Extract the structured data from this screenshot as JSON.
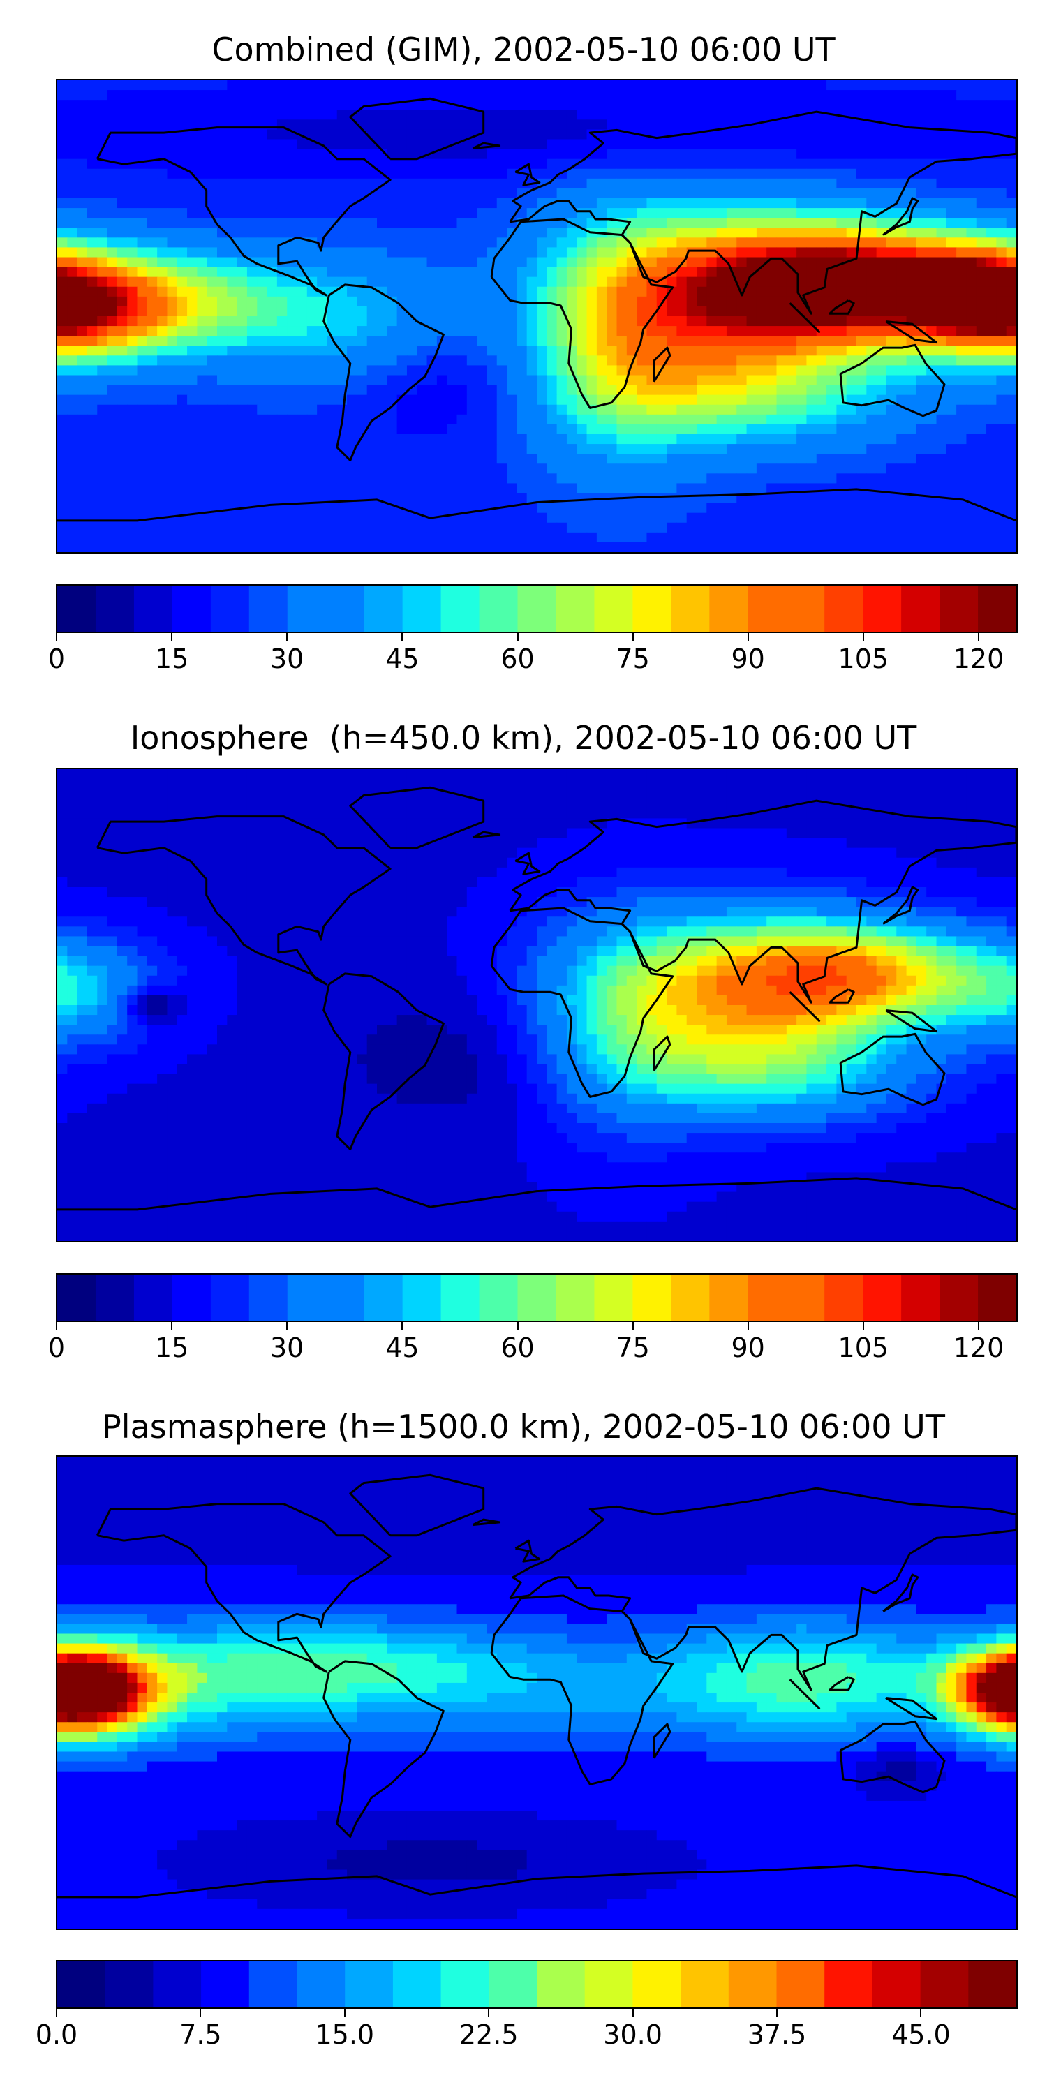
{
  "colormap": [
    "#00007f",
    "#00009f",
    "#0000cf",
    "#0000ff",
    "#0020ff",
    "#0050ff",
    "#0080ff",
    "#00a8ff",
    "#00d4ff",
    "#1fffe0",
    "#4dffaa",
    "#7dff7a",
    "#aaff4d",
    "#d4ff23",
    "#fff200",
    "#ffc400",
    "#ff9800",
    "#ff6c00",
    "#ff4000",
    "#ff1400",
    "#d40000",
    "#a30000",
    "#7f0000"
  ],
  "coastline_color": "#000000",
  "chart_data": [
    {
      "type": "heatmap",
      "title": "Combined (GIM), 2002-05-10 06:00 UT",
      "colorbar": {
        "min": 0,
        "max": 125,
        "step": 5,
        "ticks": [
          "0",
          "15",
          "30",
          "45",
          "60",
          "75",
          "90",
          "105",
          "120"
        ],
        "tick_values": [
          0,
          15,
          30,
          45,
          60,
          75,
          90,
          105,
          120
        ]
      },
      "background_value": 22,
      "features": [
        {
          "lon": 120,
          "lat": 12,
          "value": 100,
          "sigma_lon": 40,
          "sigma_lat": 15
        },
        {
          "lon": 160,
          "lat": 10,
          "value": 30,
          "sigma_lon": 15,
          "sigma_lat": 10
        },
        {
          "lon": 70,
          "lat": 5,
          "value": 55,
          "sigma_lon": 40,
          "sigma_lat": 25
        },
        {
          "lon": 30,
          "lat": -10,
          "value": 30,
          "sigma_lon": 25,
          "sigma_lat": 35
        },
        {
          "lon": 80,
          "lat": -30,
          "value": 25,
          "sigma_lon": 45,
          "sigma_lat": 15
        },
        {
          "lon": -180,
          "lat": 3,
          "value": 70,
          "sigma_lon": 25,
          "sigma_lat": 14
        },
        {
          "lon": -140,
          "lat": 5,
          "value": 45,
          "sigma_lon": 35,
          "sigma_lat": 14
        },
        {
          "lon": -70,
          "lat": -5,
          "value": 22,
          "sigma_lon": 30,
          "sigma_lat": 20
        },
        {
          "lon": -40,
          "lat": -25,
          "value": -12,
          "sigma_lon": 30,
          "sigma_lat": 15
        },
        {
          "lon": 0,
          "lat": 70,
          "value": -10,
          "sigma_lon": 120,
          "sigma_lat": 12
        }
      ]
    },
    {
      "type": "heatmap",
      "title": "Ionosphere  (h=450.0 km), 2002-05-10 06:00 UT",
      "colorbar": {
        "min": 0,
        "max": 125,
        "step": 5,
        "ticks": [
          "0",
          "15",
          "30",
          "45",
          "60",
          "75",
          "90",
          "105",
          "120"
        ],
        "tick_values": [
          0,
          15,
          30,
          45,
          60,
          75,
          90,
          105,
          120
        ]
      },
      "background_value": 14,
      "features": [
        {
          "lon": 120,
          "lat": 12,
          "value": 60,
          "sigma_lon": 35,
          "sigma_lat": 14
        },
        {
          "lon": 70,
          "lat": 5,
          "value": 50,
          "sigma_lon": 40,
          "sigma_lat": 22
        },
        {
          "lon": 90,
          "lat": -25,
          "value": 30,
          "sigma_lon": 40,
          "sigma_lat": 15
        },
        {
          "lon": 30,
          "lat": -10,
          "value": 20,
          "sigma_lon": 25,
          "sigma_lat": 30
        },
        {
          "lon": -175,
          "lat": 5,
          "value": 28,
          "sigma_lon": 25,
          "sigma_lat": 14
        },
        {
          "lon": -145,
          "lat": 0,
          "value": -20,
          "sigma_lon": 8,
          "sigma_lat": 5
        },
        {
          "lon": -20,
          "lat": -20,
          "value": -8,
          "sigma_lon": 40,
          "sigma_lat": 20
        }
      ]
    },
    {
      "type": "heatmap",
      "title": "Plasmasphere (h=1500.0 km), 2002-05-10 06:00 UT",
      "colorbar": {
        "min": 0,
        "max": 50,
        "step": 2.5,
        "ticks": [
          "0.0",
          "7.5",
          "15.0",
          "22.5",
          "30.0",
          "37.5",
          "45.0"
        ],
        "tick_values": [
          0,
          7.5,
          15,
          22.5,
          30,
          37.5,
          45
        ]
      },
      "background_value": 8,
      "features": [
        {
          "lon": -170,
          "lat": 0,
          "value": 34,
          "sigma_lon": 20,
          "sigma_lat": 12
        },
        {
          "lon": -120,
          "lat": 5,
          "value": 12,
          "sigma_lon": 40,
          "sigma_lat": 15
        },
        {
          "lon": -60,
          "lat": 10,
          "value": 10,
          "sigma_lon": 40,
          "sigma_lat": 12
        },
        {
          "lon": 0,
          "lat": 0,
          "value": 6,
          "sigma_lon": 40,
          "sigma_lat": 15
        },
        {
          "lon": 100,
          "lat": 5,
          "value": 16,
          "sigma_lon": 40,
          "sigma_lat": 15
        },
        {
          "lon": 180,
          "lat": 2,
          "value": 22,
          "sigma_lon": 18,
          "sigma_lat": 10
        },
        {
          "lon": 135,
          "lat": -30,
          "value": -5,
          "sigma_lon": 10,
          "sigma_lat": 6
        },
        {
          "lon": 0,
          "lat": 70,
          "value": -3,
          "sigma_lon": 150,
          "sigma_lat": 15
        },
        {
          "lon": -40,
          "lat": -65,
          "value": -4,
          "sigma_lon": 50,
          "sigma_lat": 10
        }
      ]
    }
  ]
}
